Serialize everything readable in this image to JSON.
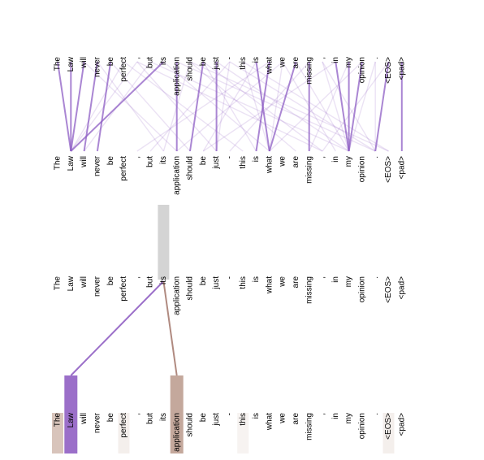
{
  "tokens": [
    "The",
    "Law",
    "will",
    "never",
    "be",
    "perfect",
    ",",
    "but",
    "its",
    "application",
    "should",
    "be",
    "just",
    "-",
    "this",
    "is",
    "what",
    "we",
    "are",
    "missing",
    ",",
    "in",
    "my",
    "opinion",
    ".",
    "<EOS>",
    "<pad>"
  ],
  "colors": {
    "attention": "#8e5ec4",
    "highlight_purple": "#9b6fc9",
    "highlight_brown": "#b89a8e",
    "highlight_gray": "#d4d4d4",
    "link_brown": "#b08a80"
  },
  "top_panel": {
    "strong_links": [
      [
        1,
        1
      ],
      [
        8,
        1
      ],
      [
        0,
        1
      ],
      [
        3,
        2
      ],
      [
        9,
        9
      ],
      [
        12,
        12
      ],
      [
        15,
        16
      ],
      [
        16,
        15
      ],
      [
        19,
        19
      ],
      [
        21,
        22
      ],
      [
        22,
        22
      ],
      [
        23,
        22
      ],
      [
        26,
        26
      ],
      [
        25,
        24
      ],
      [
        2,
        1
      ],
      [
        4,
        3
      ],
      [
        11,
        10
      ],
      [
        18,
        16
      ]
    ],
    "weak_links": [
      [
        5,
        1
      ],
      [
        6,
        1
      ],
      [
        7,
        2
      ],
      [
        10,
        8
      ],
      [
        13,
        12
      ],
      [
        14,
        16
      ],
      [
        17,
        16
      ],
      [
        20,
        22
      ],
      [
        24,
        24
      ],
      [
        24,
        22
      ],
      [
        3,
        8
      ],
      [
        4,
        10
      ],
      [
        5,
        14
      ],
      [
        6,
        20
      ],
      [
        7,
        22
      ],
      [
        9,
        24
      ],
      [
        10,
        25
      ],
      [
        11,
        20
      ],
      [
        12,
        22
      ],
      [
        13,
        24
      ],
      [
        14,
        25
      ],
      [
        17,
        21
      ],
      [
        18,
        22
      ],
      [
        20,
        24
      ],
      [
        2,
        9
      ],
      [
        6,
        12
      ],
      [
        8,
        16
      ],
      [
        10,
        18
      ],
      [
        11,
        15
      ],
      [
        13,
        7
      ],
      [
        15,
        11
      ],
      [
        16,
        6
      ],
      [
        17,
        9
      ],
      [
        19,
        13
      ],
      [
        21,
        11
      ],
      [
        22,
        19
      ],
      [
        23,
        16
      ],
      [
        25,
        20
      ]
    ]
  },
  "bottom_panel": {
    "query_index": 8,
    "links": [
      {
        "from": 8,
        "to": 1,
        "color": "#9b6fc9"
      },
      {
        "from": 8,
        "to": 9,
        "color": "#b08a80"
      }
    ],
    "highlights": [
      {
        "index": 1,
        "color": "#9b6fc9"
      },
      {
        "index": 9,
        "color": "#c4a89c"
      }
    ],
    "faint_highlights": [
      {
        "index": 0,
        "color": "#d8c4bb"
      },
      {
        "index": 5,
        "color": "#f4efec"
      },
      {
        "index": 14,
        "color": "#f7f3f1"
      },
      {
        "index": 25,
        "color": "#f4efec"
      }
    ]
  }
}
